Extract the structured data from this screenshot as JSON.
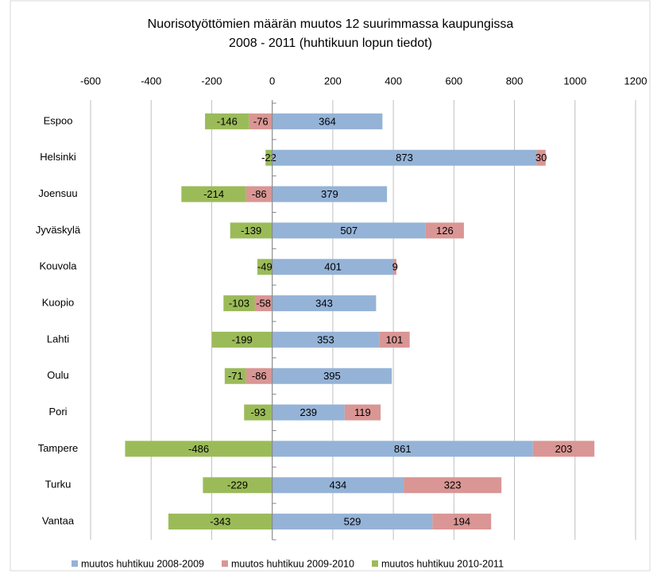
{
  "chart_data": {
    "type": "diverging-stacked-barh",
    "title": [
      "Nuorisotyöttömien määrän muutos 12 suurimmassa kaupungissa",
      "2008  - 2011 (huhtikuun lopun tiedot)"
    ],
    "categories": [
      "Espoo",
      "Helsinki",
      "Joensuu",
      "Jyväskylä",
      "Kouvola",
      "Kuopio",
      "Lahti",
      "Oulu",
      "Pori",
      "Tampere",
      "Turku",
      "Vantaa"
    ],
    "series": [
      {
        "name": "muutos huhtikuu 2008-2009",
        "color": "#95b3d7",
        "values": [
          364,
          873,
          379,
          507,
          401,
          343,
          353,
          395,
          239,
          861,
          434,
          529
        ]
      },
      {
        "name": "muutos huhtikuu 2009-2010",
        "color": "#d99694",
        "values": [
          -76,
          30,
          -86,
          126,
          9,
          -58,
          101,
          -86,
          119,
          203,
          323,
          194
        ]
      },
      {
        "name": "muutos huhtikuu 2010-2011",
        "color": "#9bbb59",
        "values": [
          -146,
          -22,
          -214,
          -139,
          -49,
          -103,
          -199,
          -71,
          -93,
          -486,
          -229,
          -343
        ]
      }
    ],
    "xlim": [
      -600,
      1200
    ],
    "xticks": [
      -600,
      -400,
      -200,
      0,
      200,
      400,
      600,
      800,
      1000,
      1200
    ],
    "grid": true
  }
}
